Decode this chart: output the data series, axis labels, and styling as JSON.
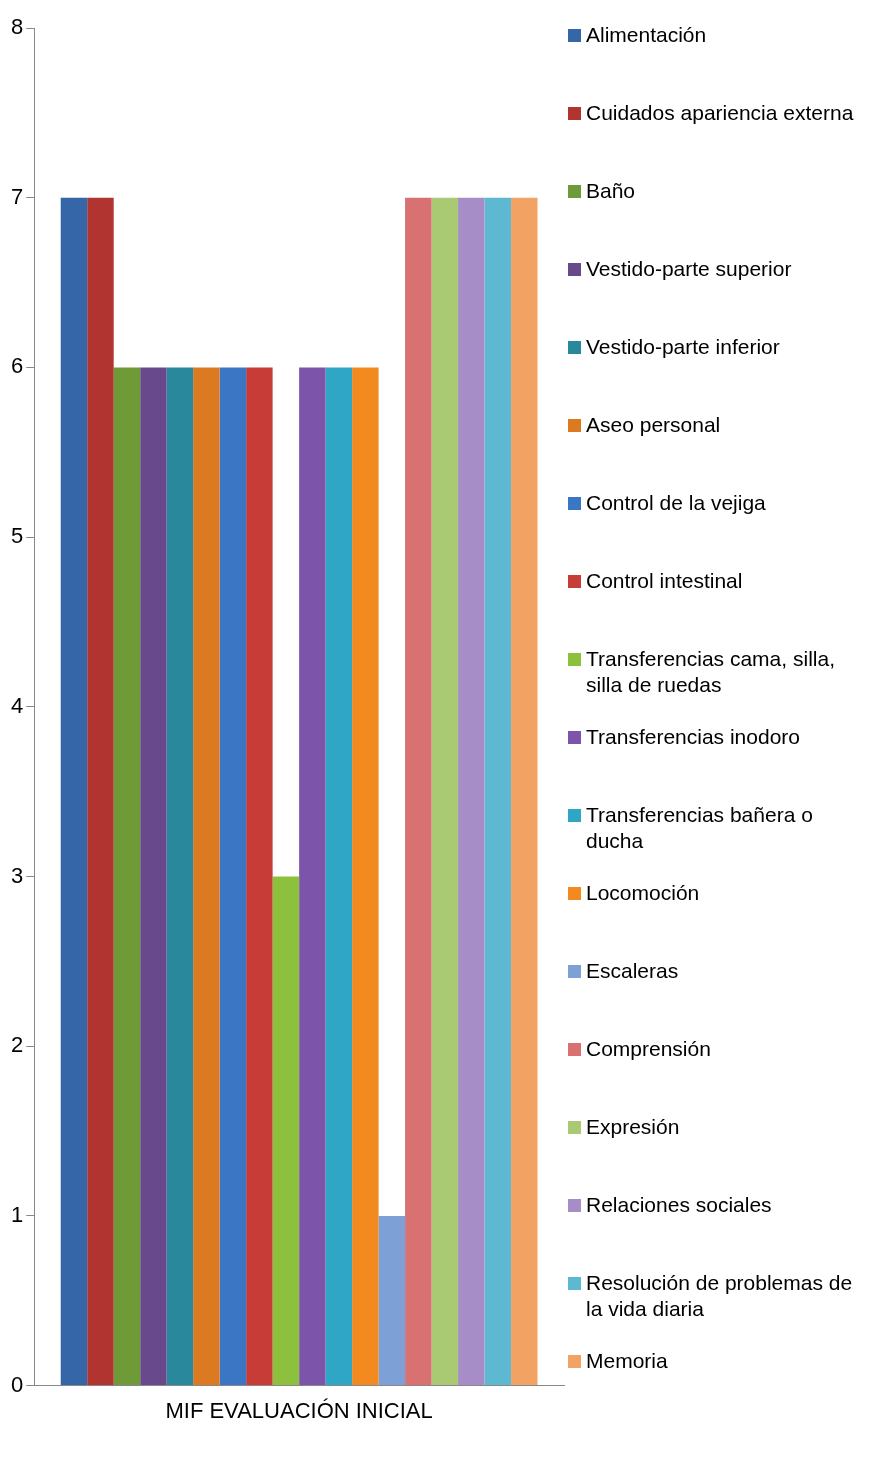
{
  "chart_data": {
    "type": "bar",
    "categories": [
      "MIF EVALUACIÓN INICIAL"
    ],
    "series": [
      {
        "name": "Alimentación",
        "color": "#3566a8",
        "values": [
          7
        ]
      },
      {
        "name": "Cuidados apariencia externa",
        "color": "#b13430",
        "values": [
          7
        ]
      },
      {
        "name": "Baño",
        "color": "#6f9a38",
        "values": [
          6
        ]
      },
      {
        "name": "Vestido-parte superior",
        "color": "#684a8c",
        "values": [
          6
        ]
      },
      {
        "name": "Vestido-parte inferior",
        "color": "#2a889c",
        "values": [
          6
        ]
      },
      {
        "name": "Aseo personal",
        "color": "#dc7a22",
        "values": [
          6
        ]
      },
      {
        "name": "Control de la vejiga",
        "color": "#3b76c4",
        "values": [
          6
        ]
      },
      {
        "name": "Control intestinal",
        "color": "#c83c38",
        "values": [
          6
        ]
      },
      {
        "name": "Transferencias cama, silla, silla de ruedas",
        "color": "#8dc03c",
        "values": [
          3
        ]
      },
      {
        "name": "Transferencias inodoro",
        "color": "#7c55aa",
        "values": [
          6
        ]
      },
      {
        "name": "Transferencias bañera o ducha",
        "color": "#30a6c6",
        "values": [
          6
        ]
      },
      {
        "name": "Locomoción",
        "color": "#f28a20",
        "values": [
          6
        ]
      },
      {
        "name": "Escaleras",
        "color": "#7da0d6",
        "values": [
          1
        ]
      },
      {
        "name": "Comprensión",
        "color": "#d87272",
        "values": [
          7
        ]
      },
      {
        "name": "Expresión",
        "color": "#a9c972",
        "values": [
          7
        ]
      },
      {
        "name": "Relaciones sociales",
        "color": "#a68dc8",
        "values": [
          7
        ]
      },
      {
        "name": "Resolución de problemas de la vida diaria",
        "color": "#5db9d2",
        "values": [
          7
        ]
      },
      {
        "name": "Memoria",
        "color": "#f2a262",
        "values": [
          7
        ]
      }
    ],
    "ylim": [
      0,
      8
    ],
    "yticks": [
      0,
      1,
      2,
      3,
      4,
      5,
      6,
      7,
      8
    ],
    "grid": false,
    "legend": "right"
  }
}
